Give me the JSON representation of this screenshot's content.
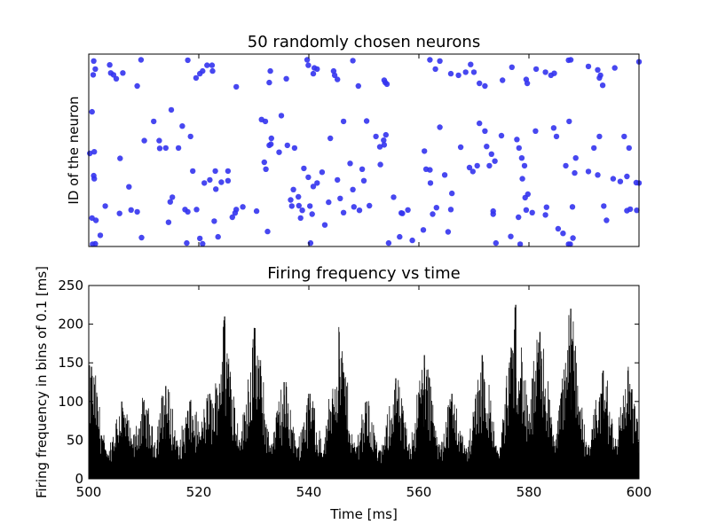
{
  "chart_data": [
    {
      "type": "scatter",
      "title": "50 randomly chosen neurons",
      "xlabel": "",
      "ylabel": "ID of the neuron",
      "xlim": [
        500,
        600
      ],
      "ylim": [
        0,
        50
      ],
      "xticks": [
        500,
        520,
        540,
        560,
        580,
        600
      ],
      "show_tick_labels": false,
      "marker_color": "#3333ee",
      "points": [
        [
          500.9,
          48.2
        ],
        [
          500.8,
          44.6
        ],
        [
          501.2,
          46.1
        ],
        [
          504.0,
          45.1
        ],
        [
          504.5,
          44.6
        ],
        [
          505.0,
          43.6
        ],
        [
          503.8,
          47.2
        ],
        [
          506.2,
          45.1
        ],
        [
          509.5,
          48.5
        ],
        [
          508.8,
          41.7
        ],
        [
          518.0,
          48.4
        ],
        [
          519.5,
          43.8
        ],
        [
          520.2,
          44.9
        ],
        [
          520.7,
          45.6
        ],
        [
          521.5,
          47.1
        ],
        [
          522.5,
          45.6
        ],
        [
          522.4,
          47.1
        ],
        [
          526.8,
          41.5
        ],
        [
          532.8,
          42.6
        ],
        [
          533.0,
          45.6
        ],
        [
          535.9,
          43.6
        ],
        [
          539.7,
          48.5
        ],
        [
          539.9,
          47.1
        ],
        [
          541.0,
          46.4
        ],
        [
          540.8,
          44.9
        ],
        [
          541.5,
          46.1
        ],
        [
          544.5,
          45.6
        ],
        [
          544.7,
          44.5
        ],
        [
          545.2,
          43.4
        ],
        [
          548.0,
          48.3
        ],
        [
          549.0,
          41.7
        ],
        [
          553.7,
          43.2
        ],
        [
          553.9,
          42.6
        ],
        [
          554.2,
          42.2
        ],
        [
          562.0,
          48.5
        ],
        [
          563.8,
          48.2
        ],
        [
          563.0,
          46.1
        ],
        [
          565.8,
          44.9
        ],
        [
          567.2,
          44.5
        ],
        [
          568.5,
          45.3
        ],
        [
          569.4,
          47.3
        ],
        [
          570.0,
          45.3
        ],
        [
          571.0,
          42.4
        ],
        [
          572.0,
          41.7
        ],
        [
          575.2,
          43.2
        ],
        [
          576.9,
          46.6
        ],
        [
          579.5,
          43.4
        ],
        [
          579.7,
          42.4
        ],
        [
          581.3,
          46.1
        ],
        [
          583.0,
          45.3
        ],
        [
          584.0,
          44.5
        ],
        [
          584.6,
          45.0
        ],
        [
          587.2,
          48.4
        ],
        [
          587.6,
          48.5
        ],
        [
          590.8,
          46.8
        ],
        [
          592.5,
          45.9
        ],
        [
          593.0,
          44.5
        ],
        [
          592.8,
          43.8
        ],
        [
          593.4,
          41.9
        ],
        [
          595.6,
          46.4
        ],
        [
          600.0,
          48.0
        ],
        [
          500.6,
          35.0
        ],
        [
          500.2,
          24.2
        ],
        [
          501.0,
          24.6
        ],
        [
          500.9,
          18.4
        ],
        [
          501.0,
          17.6
        ],
        [
          500.6,
          7.4
        ],
        [
          501.3,
          6.8
        ],
        [
          501.2,
          0.7
        ],
        [
          500.7,
          0.6
        ],
        [
          502.1,
          2.9
        ],
        [
          503.0,
          10.5
        ],
        [
          505.6,
          8.6
        ],
        [
          505.7,
          22.9
        ],
        [
          507.3,
          15.5
        ],
        [
          507.7,
          9.5
        ],
        [
          508.8,
          9.0
        ],
        [
          509.6,
          2.3
        ],
        [
          510.1,
          27.5
        ],
        [
          511.8,
          32.5
        ],
        [
          512.8,
          27.5
        ],
        [
          512.9,
          25.5
        ],
        [
          514.0,
          25.6
        ],
        [
          515.0,
          35.5
        ],
        [
          514.5,
          6.3
        ],
        [
          514.8,
          11.6
        ],
        [
          515.2,
          12.8
        ],
        [
          516.3,
          25.6
        ],
        [
          517.0,
          31.3
        ],
        [
          517.5,
          9.6
        ],
        [
          517.8,
          0.9
        ],
        [
          518.0,
          9.0
        ],
        [
          518.5,
          28.6
        ],
        [
          518.9,
          19.6
        ],
        [
          519.6,
          9.6
        ],
        [
          520.2,
          2.1
        ],
        [
          520.7,
          0.7
        ],
        [
          521.0,
          16.5
        ],
        [
          522.0,
          17.3
        ],
        [
          522.8,
          6.6
        ],
        [
          523.1,
          14.9
        ],
        [
          523.5,
          2.5
        ],
        [
          523.0,
          19.6
        ],
        [
          524.1,
          16.7
        ],
        [
          525.3,
          17.1
        ],
        [
          525.3,
          19.6
        ],
        [
          526.1,
          7.6
        ],
        [
          526.8,
          9.6
        ],
        [
          526.6,
          8.7
        ],
        [
          528.0,
          10.3
        ],
        [
          530.5,
          9.2
        ],
        [
          531.4,
          33.0
        ],
        [
          532.8,
          26.3
        ],
        [
          532.1,
          32.5
        ],
        [
          532.2,
          20.1
        ],
        [
          531.9,
          21.9
        ],
        [
          532.5,
          3.9
        ],
        [
          533.1,
          26.6
        ],
        [
          533.2,
          28.1
        ],
        [
          535.0,
          34.0
        ],
        [
          534.6,
          24.5
        ],
        [
          536.1,
          26.3
        ],
        [
          537.4,
          25.6
        ],
        [
          536.7,
          12.1
        ],
        [
          537.2,
          14.8
        ],
        [
          536.9,
          10.5
        ],
        [
          538.1,
          12.9
        ],
        [
          538.2,
          10.6
        ],
        [
          538.8,
          9.4
        ],
        [
          538.5,
          7.4
        ],
        [
          539.1,
          20.3
        ],
        [
          539.9,
          18.0
        ],
        [
          540.8,
          15.6
        ],
        [
          540.6,
          8.4
        ],
        [
          540.2,
          10.5
        ],
        [
          540.3,
          0.9
        ],
        [
          541.5,
          16.5
        ],
        [
          542.4,
          19.3
        ],
        [
          542.9,
          5.6
        ],
        [
          543.6,
          11.5
        ],
        [
          543.9,
          28.1
        ],
        [
          545.2,
          17.3
        ],
        [
          545.7,
          12.5
        ],
        [
          546.3,
          32.5
        ],
        [
          546.3,
          8.8
        ],
        [
          547.5,
          21.6
        ],
        [
          548.0,
          14.8
        ],
        [
          548.2,
          10.3
        ],
        [
          549.2,
          9.4
        ],
        [
          549.7,
          20.1
        ],
        [
          550.0,
          17.1
        ],
        [
          550.5,
          32.6
        ],
        [
          551.0,
          10.6
        ],
        [
          552.2,
          28.6
        ],
        [
          553.0,
          21.3
        ],
        [
          553.6,
          27.6
        ],
        [
          554.0,
          29.0
        ],
        [
          552.9,
          25.9
        ],
        [
          553.7,
          26.4
        ],
        [
          554.5,
          0.9
        ],
        [
          555.4,
          12.8
        ],
        [
          556.5,
          2.5
        ],
        [
          556.8,
          8.7
        ],
        [
          557.0,
          8.6
        ],
        [
          558.0,
          9.5
        ],
        [
          558.8,
          1.6
        ],
        [
          560.8,
          4.3
        ],
        [
          561.0,
          24.8
        ],
        [
          561.3,
          20.1
        ],
        [
          562.0,
          19.9
        ],
        [
          562.1,
          16.5
        ],
        [
          562.5,
          8.4
        ],
        [
          563.2,
          10.1
        ],
        [
          563.8,
          31.0
        ],
        [
          564.7,
          18.6
        ],
        [
          565.8,
          9.6
        ],
        [
          565.3,
          3.8
        ],
        [
          566.0,
          13.8
        ],
        [
          567.6,
          25.8
        ],
        [
          569.2,
          20.5
        ],
        [
          569.8,
          19.5
        ],
        [
          570.6,
          21.0
        ],
        [
          571.0,
          32.0
        ],
        [
          572.0,
          30.0
        ],
        [
          572.3,
          26.0
        ],
        [
          572.8,
          21.0
        ],
        [
          573.2,
          24.0
        ],
        [
          573.5,
          9.2
        ],
        [
          573.5,
          8.4
        ],
        [
          573.8,
          22.2
        ],
        [
          574.0,
          0.9
        ],
        [
          575.0,
          28.8
        ],
        [
          576.7,
          2.6
        ],
        [
          577.8,
          27.8
        ],
        [
          578.2,
          25.6
        ],
        [
          578.1,
          7.6
        ],
        [
          578.4,
          0.6
        ],
        [
          578.7,
          23.0
        ],
        [
          579.2,
          21.0
        ],
        [
          578.8,
          17.6
        ],
        [
          579.5,
          9.5
        ],
        [
          579.3,
          12.7
        ],
        [
          579.8,
          13.6
        ],
        [
          580.6,
          8.8
        ],
        [
          581.2,
          30.0
        ],
        [
          583.0,
          8.2
        ],
        [
          583.2,
          10.2
        ],
        [
          584.5,
          30.8
        ],
        [
          585.0,
          28.6
        ],
        [
          585.3,
          4.6
        ],
        [
          586.2,
          3.4
        ],
        [
          587.3,
          32.5
        ],
        [
          586.7,
          21.0
        ],
        [
          587.2,
          0.6
        ],
        [
          587.5,
          0.6
        ],
        [
          588.0,
          2.2
        ],
        [
          587.9,
          10.3
        ],
        [
          588.3,
          19.1
        ],
        [
          588.5,
          23.0
        ],
        [
          590.8,
          19.5
        ],
        [
          591.8,
          25.6
        ],
        [
          592.5,
          18.6
        ],
        [
          592.8,
          28.6
        ],
        [
          593.6,
          10.5
        ],
        [
          594.1,
          6.8
        ],
        [
          595.3,
          17.6
        ],
        [
          596.6,
          16.9
        ],
        [
          597.3,
          28.6
        ],
        [
          597.8,
          18.2
        ],
        [
          597.8,
          9.3
        ],
        [
          598.4,
          9.7
        ],
        [
          599.5,
          16.6
        ],
        [
          599.6,
          9.4
        ],
        [
          598.2,
          25.6
        ],
        [
          600.0,
          16.5
        ]
      ]
    },
    {
      "type": "bar",
      "title": "Firing frequency vs time",
      "xlabel": "Time [ms]",
      "ylabel": "Firing frequency in bins of 0.1 [ms]",
      "xlim": [
        500,
        600
      ],
      "ylim": [
        0,
        250
      ],
      "xticks": [
        500,
        520,
        540,
        560,
        580,
        600
      ],
      "yticks": [
        0,
        50,
        100,
        150,
        200,
        250
      ],
      "bin_width_ms": 0.1,
      "bar_color": "#000000",
      "peaks": [
        {
          "t": 500.5,
          "h": 145
        },
        {
          "t": 506,
          "h": 100
        },
        {
          "t": 510,
          "h": 100
        },
        {
          "t": 514,
          "h": 120
        },
        {
          "t": 518.5,
          "h": 100
        },
        {
          "t": 522,
          "h": 110
        },
        {
          "t": 524.7,
          "h": 210
        },
        {
          "t": 530.2,
          "h": 195
        },
        {
          "t": 535.5,
          "h": 125
        },
        {
          "t": 540.2,
          "h": 110
        },
        {
          "t": 545.5,
          "h": 190
        },
        {
          "t": 550.5,
          "h": 100
        },
        {
          "t": 555.8,
          "h": 130
        },
        {
          "t": 561,
          "h": 160
        },
        {
          "t": 566,
          "h": 110
        },
        {
          "t": 571.5,
          "h": 160
        },
        {
          "t": 577.6,
          "h": 225
        },
        {
          "t": 582,
          "h": 190
        },
        {
          "t": 587.6,
          "h": 220
        },
        {
          "t": 593.5,
          "h": 140
        },
        {
          "t": 598,
          "h": 140
        }
      ]
    }
  ]
}
